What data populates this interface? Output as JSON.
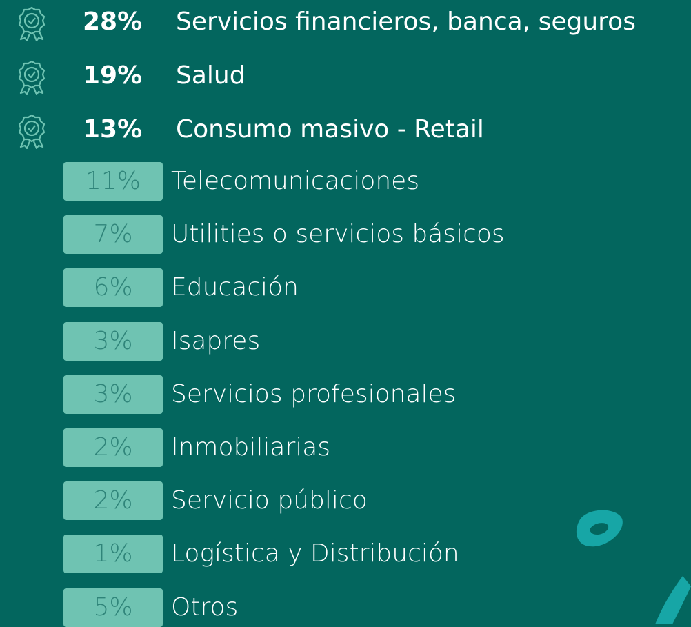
{
  "top_items": [
    {
      "percent": "28%",
      "label": "Servicios financieros, banca, seguros"
    },
    {
      "percent": "19%",
      "label": "Salud"
    },
    {
      "percent": "13%",
      "label": "Consumo masivo - Retail"
    }
  ],
  "items": [
    {
      "percent": "11%",
      "label": "Telecomunicaciones"
    },
    {
      "percent": "7%",
      "label": "Utilities o servicios básicos"
    },
    {
      "percent": "6%",
      "label": "Educación"
    },
    {
      "percent": "3%",
      "label": "Isapres"
    },
    {
      "percent": "3%",
      "label": "Servicios profesionales"
    },
    {
      "percent": "2%",
      "label": "Inmobiliarias"
    },
    {
      "percent": "2%",
      "label": "Servicio público"
    },
    {
      "percent": "1%",
      "label": "Logística y Distribución"
    },
    {
      "percent": "5%",
      "label": "Otros"
    }
  ]
}
